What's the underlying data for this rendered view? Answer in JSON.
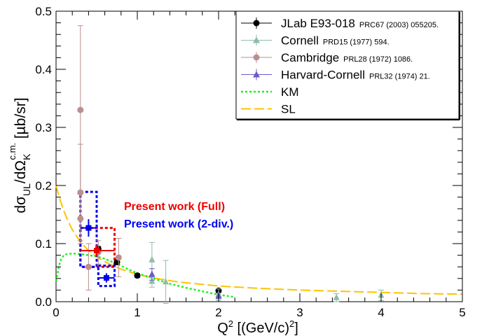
{
  "chart_data": {
    "type": "scatter",
    "title": "",
    "xlabel_main": "Q",
    "xlabel_sup": "2",
    "xlabel_rest": " [(GeV/c)",
    "xlabel_sup2": "2",
    "xlabel_end": "]",
    "ylabel_main": "dσ",
    "ylabel_sub": "UL",
    "ylabel_mid": "/dΩ",
    "ylabel_sub2": "K",
    "ylabel_sup": "c.m.",
    "ylabel_end": " [µb/sr]",
    "xlim": [
      0,
      5
    ],
    "ylim": [
      0,
      0.5
    ],
    "x_ticks": [
      "0",
      "1",
      "2",
      "3",
      "4",
      "5"
    ],
    "y_ticks": [
      "0.0",
      "0.1",
      "0.2",
      "0.3",
      "0.4",
      "0.5"
    ],
    "grid": false,
    "legend_position": "top-right",
    "legend": [
      {
        "label": "JLab E93-018",
        "ref": "PRC67 (2003) 055205.",
        "marker": "circle",
        "color": "#000000"
      },
      {
        "label": "Cornell",
        "ref": "PRD15 (1977) 594.",
        "marker": "triangle",
        "color": "#8fbca8"
      },
      {
        "label": "Cambridge",
        "ref": "PRL28 (1972) 1086.",
        "marker": "circle",
        "color": "#bc8f8f"
      },
      {
        "label": "Harvard-Cornell",
        "ref": "PRL32 (1974) 21.",
        "marker": "triangle",
        "color": "#6a5acd"
      },
      {
        "label": "KM",
        "ref": "",
        "marker": "dotted-line",
        "color": "#22ee22"
      },
      {
        "label": "SL",
        "ref": "",
        "marker": "dashed-line",
        "color": "#ffc200"
      }
    ],
    "annotations": [
      {
        "text": "Present work (Full)",
        "color": "#ee0000"
      },
      {
        "text": "Present work (2-div.)",
        "color": "#0000ee"
      }
    ],
    "series": [
      {
        "name": "JLab E93-018",
        "color": "#000000",
        "marker": "circle",
        "points": [
          {
            "x": 0.52,
            "y": 0.091,
            "err": 0.004
          },
          {
            "x": 0.75,
            "y": 0.068,
            "err": 0.004
          },
          {
            "x": 1.0,
            "y": 0.045,
            "err": 0.003
          },
          {
            "x": 2.0,
            "y": 0.019,
            "err": 0.003
          }
        ]
      },
      {
        "name": "Cornell",
        "color": "#8fbca8",
        "marker": "triangle",
        "points": [
          {
            "x": 1.18,
            "y": 0.072,
            "err": 0.03
          },
          {
            "x": 1.18,
            "y": 0.035,
            "err": 0.01
          },
          {
            "x": 1.35,
            "y": 0.034,
            "err": 0.037
          },
          {
            "x": 2.0,
            "y": 0.012,
            "err": 0.01
          },
          {
            "x": 3.45,
            "y": 0.007,
            "err": 0.007
          },
          {
            "x": 4.0,
            "y": 0.011,
            "err": 0.009
          }
        ]
      },
      {
        "name": "Cambridge",
        "color": "#bc8f8f",
        "marker": "circle",
        "points": [
          {
            "x": 0.3,
            "y": 0.33,
            "err": 0.145
          },
          {
            "x": 0.3,
            "y": 0.188,
            "err": 0.083
          },
          {
            "x": 0.3,
            "y": 0.143,
            "err": 0.043
          },
          {
            "x": 0.4,
            "y": 0.06,
            "err": 0.04
          },
          {
            "x": 0.52,
            "y": 0.085,
            "err": 0.02
          },
          {
            "x": 0.77,
            "y": 0.076,
            "err": 0.033
          }
        ]
      },
      {
        "name": "Harvard-Cornell",
        "color": "#6a5acd",
        "marker": "triangle",
        "points": [
          {
            "x": 1.18,
            "y": 0.047,
            "err": 0.01
          },
          {
            "x": 2.0,
            "y": 0.01,
            "err": 0.005
          }
        ]
      }
    ],
    "present_full": {
      "name": "Present work (Full)",
      "color": "#ee0000",
      "x": 0.5,
      "y": 0.088,
      "x_lo": 0.3,
      "x_hi": 0.72,
      "stat_err": 0.01,
      "sys_box": {
        "x0": 0.3,
        "x1": 0.72,
        "y0": 0.06,
        "y1": 0.127
      }
    },
    "present_2div": {
      "name": "Present work (2-div.)",
      "color": "#0000ee",
      "points": [
        {
          "x": 0.4,
          "y": 0.127,
          "x_lo": 0.3,
          "x_hi": 0.5,
          "stat_err": 0.015,
          "sys_box": {
            "x0": 0.3,
            "x1": 0.5,
            "y0": 0.06,
            "y1": 0.189
          }
        },
        {
          "x": 0.62,
          "y": 0.041,
          "x_lo": 0.52,
          "x_hi": 0.72,
          "stat_err": 0.008,
          "sys_box": {
            "x0": 0.52,
            "x1": 0.72,
            "y0": 0.027,
            "y1": 0.062
          }
        }
      ]
    },
    "curve_km": {
      "name": "KM",
      "color": "#22ee22",
      "x": [
        0.0,
        0.05,
        0.1,
        0.2,
        0.3,
        0.4,
        0.5,
        0.6,
        0.7,
        0.8,
        0.9,
        1.0,
        1.2,
        1.4,
        1.6,
        1.8,
        2.0,
        2.2
      ],
      "y": [
        0.035,
        0.07,
        0.081,
        0.083,
        0.082,
        0.08,
        0.078,
        0.074,
        0.068,
        0.062,
        0.055,
        0.049,
        0.04,
        0.031,
        0.024,
        0.018,
        0.012,
        0.008
      ]
    },
    "curve_sl": {
      "name": "SL",
      "color": "#ffc200",
      "x": [
        0.0,
        0.05,
        0.1,
        0.15,
        0.2,
        0.3,
        0.4,
        0.5,
        0.6,
        0.7,
        0.8,
        1.0,
        1.2,
        1.5,
        2.0,
        2.5,
        3.0,
        3.5,
        4.0,
        4.5,
        5.0
      ],
      "y": [
        0.2,
        0.175,
        0.155,
        0.138,
        0.124,
        0.103,
        0.088,
        0.077,
        0.069,
        0.062,
        0.056,
        0.047,
        0.041,
        0.034,
        0.027,
        0.023,
        0.02,
        0.018,
        0.016,
        0.014,
        0.013
      ]
    }
  }
}
